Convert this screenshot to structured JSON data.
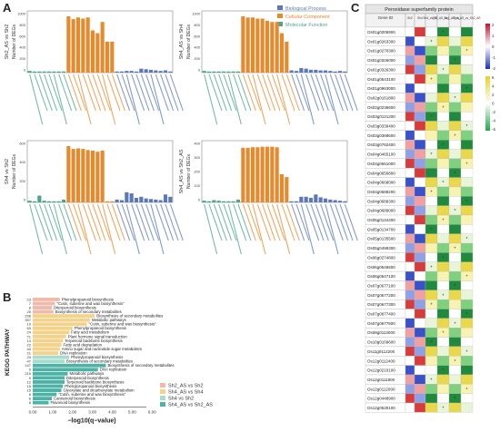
{
  "panels": {
    "a": "A",
    "b": "B",
    "c": "C"
  },
  "legend_go": [
    {
      "name": "Biological Process",
      "color": "#5a78b8"
    },
    {
      "name": "Cellular Component",
      "color": "#e88a2c"
    },
    {
      "name": "Molecular Function",
      "color": "#4aa58a"
    }
  ],
  "go_panels": [
    {
      "ylabel": "Sh2_AS vs Sh2",
      "yname": "Number of DEGs",
      "ticks": [
        "1000",
        "800",
        "600",
        "400",
        "200",
        "0"
      ]
    },
    {
      "ylabel": "Sh4_AS vs Sh4",
      "yname": "Number of DEGs",
      "ticks": [
        "1000",
        "800",
        "600",
        "400",
        "200",
        "0"
      ]
    },
    {
      "ylabel": "Sh4 vs Sh2",
      "yname": "Number of DEGs",
      "ticks": [
        "600",
        "400",
        "200",
        "0"
      ]
    },
    {
      "ylabel": "Sh4_AS vs Sh2_AS",
      "yname": "Number of DEGs",
      "ticks": [
        "400",
        "300",
        "200",
        "100",
        "0"
      ]
    }
  ],
  "kegg": {
    "ylabel": "KEGG PATHWAY",
    "xlabel": "−log10(q−value)",
    "xticks": [
      "0.00",
      "1.00",
      "2.00",
      "3.00",
      "4.00",
      "5.00",
      "6.00"
    ],
    "legend": [
      {
        "name": "Sh2_AS vs Sh2",
        "color": "#f2b8a8"
      },
      {
        "name": "Sh4_AS vs Sh4",
        "color": "#f4d28a"
      },
      {
        "name": "Sh4 vs Sh2",
        "color": "#a9dccc"
      },
      {
        "name": "Sh4_AS vs Sh2_AS",
        "color": "#4db3a6"
      }
    ],
    "rows": [
      {
        "count": "23",
        "label": "Phenylpropanoid biosynthesis",
        "value": 1.7,
        "group": 0
      },
      {
        "count": "7",
        "label": "\"Cutin, suberine and wax biosynthesis\"",
        "value": 1.4,
        "group": 0
      },
      {
        "count": "8",
        "label": "Diterpenoid biosynthesis",
        "value": 1.2,
        "group": 0
      },
      {
        "count": "25",
        "label": "Biosynthesis of secondary metabolites",
        "value": 1.3,
        "group": 0
      },
      {
        "count": "236",
        "label": "Biosynthesis of secondary metabolites",
        "value": 3.9,
        "group": 1
      },
      {
        "count": "397",
        "label": "Metabolic pathways",
        "value": 3.6,
        "group": 1
      },
      {
        "count": "19",
        "label": "\"Cutin, suberine and wax biosynthesis\"",
        "value": 3.4,
        "group": 1
      },
      {
        "count": "60",
        "label": "Phenylpropanoid biosynthesis",
        "value": 2.5,
        "group": 1
      },
      {
        "count": "24",
        "label": "Fatty acid metabolism",
        "value": 2.3,
        "group": 1
      },
      {
        "count": "71",
        "label": "Plant hormone signal transduction",
        "value": 2.1,
        "group": 1
      },
      {
        "count": "14",
        "label": "Terpenoid backbone biosynthesis",
        "value": 1.9,
        "group": 1
      },
      {
        "count": "22",
        "label": "Fatty acid degradation",
        "value": 1.8,
        "group": 1
      },
      {
        "count": "40",
        "label": "Amino sugar and nucleotide sugar metabolism",
        "value": 1.7,
        "group": 1
      },
      {
        "count": "21",
        "label": "DNA replication",
        "value": 1.6,
        "group": 1
      },
      {
        "count": "20",
        "label": "Phenylpropanoid biosynthesis",
        "value": 2.3,
        "group": 2
      },
      {
        "count": "47",
        "label": "Biosynthesis of secondary metabolites",
        "value": 2.0,
        "group": 2
      },
      {
        "count": "147",
        "label": "Biosynthesis of secondary metabolites",
        "value": 4.6,
        "group": 3
      },
      {
        "count": "9",
        "label": "DNA replication",
        "value": 4.1,
        "group": 3
      },
      {
        "count": "219",
        "label": "Metabolic pathways",
        "value": 2.2,
        "group": 3
      },
      {
        "count": "9",
        "label": "Diterpenoid biosynthesis",
        "value": 2.0,
        "group": 3
      },
      {
        "count": "12",
        "label": "Terpenoid backbone biosynthesis",
        "value": 2.0,
        "group": 3
      },
      {
        "count": "15",
        "label": "Phenylpropanoid biosynthesis",
        "value": 1.9,
        "group": 3
      },
      {
        "count": "15",
        "label": "Glyoxylate and dicarboxylate metabolism",
        "value": 1.8,
        "group": 3
      },
      {
        "count": "6",
        "label": "\"Cutin, suberine and wax biosynthesis\"",
        "value": 1.5,
        "group": 3
      },
      {
        "count": "6",
        "label": "Carotenoid biosynthesis",
        "value": 1.2,
        "group": 3
      },
      {
        "count": "6",
        "label": "Flavonoid biosynthesis",
        "value": 1.0,
        "group": 3
      }
    ]
  },
  "peroxidase": {
    "title": "Peroxidase superfamily protein",
    "columns": [
      "Gene ID",
      "Sh2",
      "Sh4",
      "Sh4_vs_Sh2",
      "Sh2_AS_vs_Sh2",
      "Sh4_AS_vs_Sh4",
      "Sh4_AS_vs_Sh2_AS"
    ],
    "genes": [
      "Os01g0205900",
      "Os01g0263300",
      "Os01g0270300",
      "Os01g0326000",
      "Os01g0326300",
      "Os01g0543100",
      "Os01g0963000",
      "Os02g0161800",
      "Os02g0236600",
      "Os03g0121200",
      "Os03g0339400",
      "Os03g0368600",
      "Os03g0762400",
      "Os04g0465100",
      "Os04g0651000",
      "Os04g0656800",
      "Os04g0668000",
      "Os04g0688200",
      "Os04g0688300",
      "Os04g0689000",
      "Os05g0134400",
      "Os05g0134700",
      "Os05g0135500",
      "Os05g0499300",
      "Os06g0274800",
      "Os06g0546500",
      "Os06g0547100",
      "Os07g0677100",
      "Os07g0677200",
      "Os07g0677300",
      "Os07g0677400",
      "Os07g0677500",
      "Os08g0113000",
      "Os10g0109600",
      "Os11g0112200",
      "Os12g0112400",
      "Os12g0210100",
      "Os12g0111800",
      "Os12g0112000",
      "Os12g0448900",
      "Os12g0530100"
    ],
    "colorbar1": [
      "2",
      "1",
      "0",
      "-1",
      "-2"
    ],
    "colorbar2": [
      "6",
      "4",
      "2",
      "0",
      "-2",
      "-4",
      "-6"
    ]
  }
}
